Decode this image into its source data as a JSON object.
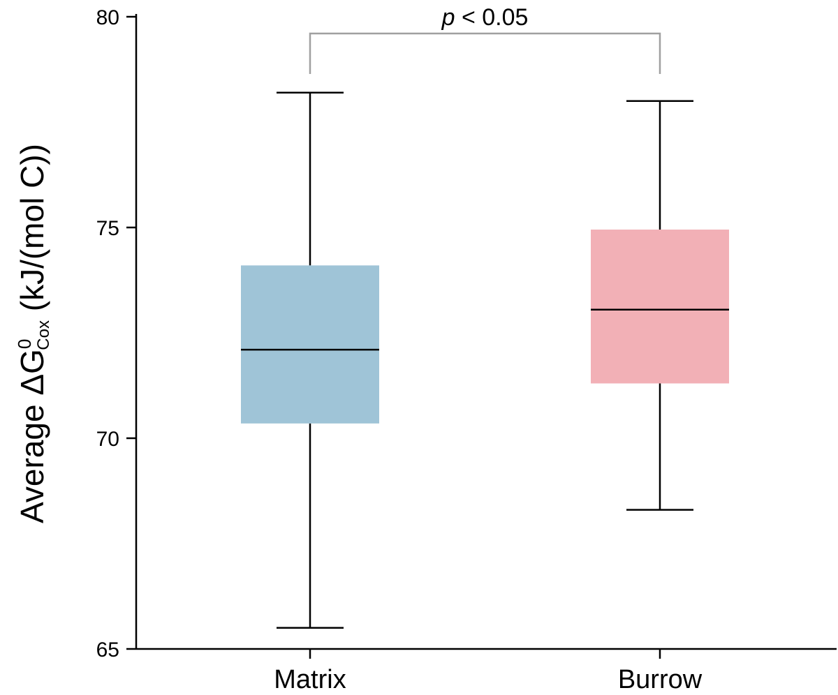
{
  "chart_data": {
    "type": "box",
    "categories": [
      "Matrix",
      "Burrow"
    ],
    "boxes": [
      {
        "name": "Matrix",
        "whisker_low": 65.5,
        "q1": 70.35,
        "median": 72.1,
        "q3": 74.1,
        "whisker_high": 78.2,
        "color": "#9fc4d7"
      },
      {
        "name": "Burrow",
        "whisker_low": 68.3,
        "q1": 71.3,
        "median": 73.05,
        "q3": 74.95,
        "whisker_high": 78.0,
        "color": "#f2b0b6"
      }
    ],
    "ylabel": {
      "prefix": "Average ΔG",
      "superscript": "0",
      "subscript": "Cox",
      "suffix": " (kJ/(mol C))"
    },
    "ylim": [
      65,
      80
    ],
    "yticks": [
      "65",
      "70",
      "75",
      "80"
    ],
    "significance": {
      "label_italic": "p",
      "label_rest": " < 0.05",
      "between": [
        "Matrix",
        "Burrow"
      ],
      "color": "#a0a0a0"
    },
    "grid": false,
    "legend": "none"
  }
}
